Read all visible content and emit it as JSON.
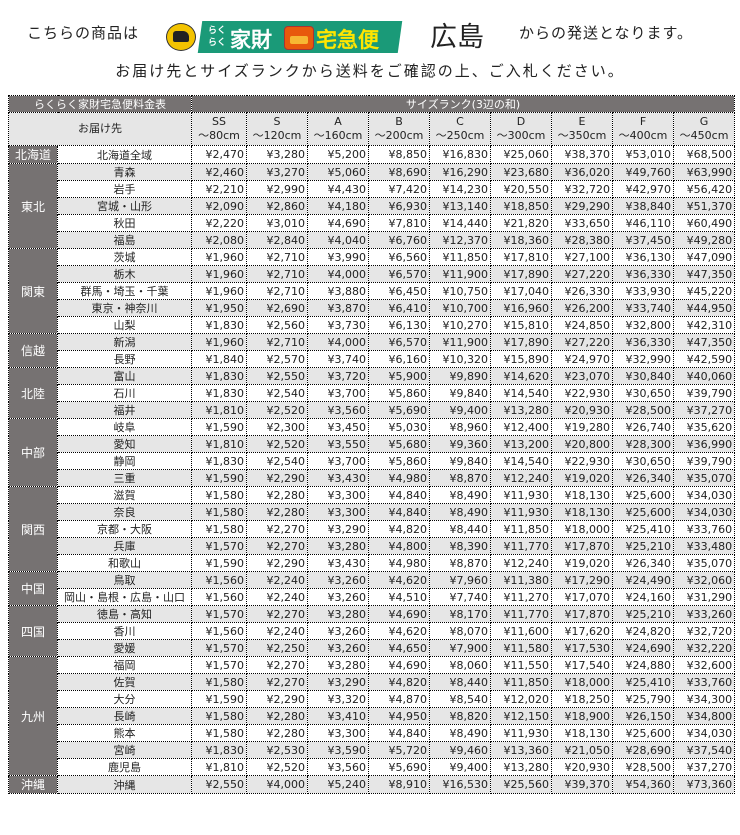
{
  "header": {
    "prefix": "こちらの商品は",
    "logo_text_small": "らくらく",
    "logo_text_a": "家財",
    "logo_text_b": "宅急便",
    "city": "広島",
    "suffix": "からの発送となります。",
    "instruction": "お届け先とサイズランクから送料をご確認の上、ご入札ください。"
  },
  "colors": {
    "header_bg": "#767272",
    "shaded_row": "#e6e6e6",
    "logo_green": "#1a9a78",
    "logo_yellow": "#ffe500"
  },
  "table": {
    "title": "らくらく家財宅急便料金表",
    "size_rank_label": "サイズランク(3辺の和)",
    "destination_label": "お届け先",
    "columns": [
      {
        "rank": "SS",
        "size": "～80cm"
      },
      {
        "rank": "S",
        "size": "～120cm"
      },
      {
        "rank": "A",
        "size": "～160cm"
      },
      {
        "rank": "B",
        "size": "～200cm"
      },
      {
        "rank": "C",
        "size": "～250cm"
      },
      {
        "rank": "D",
        "size": "～300cm"
      },
      {
        "rank": "E",
        "size": "～350cm"
      },
      {
        "rank": "F",
        "size": "～400cm"
      },
      {
        "rank": "G",
        "size": "～450cm"
      }
    ],
    "regions": [
      {
        "name": "北海道",
        "rows": [
          {
            "dest": "北海道全域",
            "shaded": false,
            "prices": [
              "¥2,470",
              "¥3,280",
              "¥5,200",
              "¥8,850",
              "¥16,830",
              "¥25,060",
              "¥38,370",
              "¥53,010",
              "¥68,500"
            ]
          }
        ]
      },
      {
        "name": "東北",
        "rows": [
          {
            "dest": "青森",
            "shaded": true,
            "prices": [
              "¥2,460",
              "¥3,270",
              "¥5,060",
              "¥8,690",
              "¥16,290",
              "¥23,680",
              "¥36,020",
              "¥49,760",
              "¥63,990"
            ]
          },
          {
            "dest": "岩手",
            "shaded": false,
            "prices": [
              "¥2,210",
              "¥2,990",
              "¥4,430",
              "¥7,420",
              "¥14,230",
              "¥20,550",
              "¥32,720",
              "¥42,970",
              "¥56,420"
            ]
          },
          {
            "dest": "宮城・山形",
            "shaded": true,
            "prices": [
              "¥2,090",
              "¥2,860",
              "¥4,180",
              "¥6,930",
              "¥13,140",
              "¥18,850",
              "¥29,290",
              "¥38,840",
              "¥51,370"
            ]
          },
          {
            "dest": "秋田",
            "shaded": false,
            "prices": [
              "¥2,220",
              "¥3,010",
              "¥4,690",
              "¥7,810",
              "¥14,440",
              "¥21,820",
              "¥33,650",
              "¥46,110",
              "¥60,490"
            ]
          },
          {
            "dest": "福島",
            "shaded": true,
            "prices": [
              "¥2,080",
              "¥2,840",
              "¥4,040",
              "¥6,760",
              "¥12,370",
              "¥18,360",
              "¥28,380",
              "¥37,450",
              "¥49,280"
            ]
          }
        ]
      },
      {
        "name": "関東",
        "rows": [
          {
            "dest": "茨城",
            "shaded": false,
            "prices": [
              "¥1,960",
              "¥2,710",
              "¥3,990",
              "¥6,560",
              "¥11,850",
              "¥17,810",
              "¥27,100",
              "¥36,130",
              "¥47,090"
            ]
          },
          {
            "dest": "栃木",
            "shaded": true,
            "prices": [
              "¥1,960",
              "¥2,710",
              "¥4,000",
              "¥6,570",
              "¥11,900",
              "¥17,890",
              "¥27,220",
              "¥36,330",
              "¥47,350"
            ]
          },
          {
            "dest": "群馬・埼玉・千葉",
            "shaded": false,
            "prices": [
              "¥1,960",
              "¥2,710",
              "¥3,880",
              "¥6,450",
              "¥10,750",
              "¥17,040",
              "¥26,330",
              "¥33,930",
              "¥45,220"
            ]
          },
          {
            "dest": "東京・神奈川",
            "shaded": true,
            "prices": [
              "¥1,950",
              "¥2,690",
              "¥3,870",
              "¥6,410",
              "¥10,700",
              "¥16,960",
              "¥26,200",
              "¥33,740",
              "¥44,950"
            ]
          },
          {
            "dest": "山梨",
            "shaded": false,
            "prices": [
              "¥1,830",
              "¥2,560",
              "¥3,730",
              "¥6,130",
              "¥10,270",
              "¥15,810",
              "¥24,850",
              "¥32,800",
              "¥42,310"
            ]
          }
        ]
      },
      {
        "name": "信越",
        "rows": [
          {
            "dest": "新潟",
            "shaded": true,
            "prices": [
              "¥1,960",
              "¥2,710",
              "¥4,000",
              "¥6,570",
              "¥11,900",
              "¥17,890",
              "¥27,220",
              "¥36,330",
              "¥47,350"
            ]
          },
          {
            "dest": "長野",
            "shaded": false,
            "prices": [
              "¥1,840",
              "¥2,570",
              "¥3,740",
              "¥6,160",
              "¥10,320",
              "¥15,890",
              "¥24,970",
              "¥32,990",
              "¥42,590"
            ]
          }
        ]
      },
      {
        "name": "北陸",
        "rows": [
          {
            "dest": "富山",
            "shaded": true,
            "prices": [
              "¥1,830",
              "¥2,550",
              "¥3,720",
              "¥5,900",
              "¥9,890",
              "¥14,620",
              "¥23,070",
              "¥30,840",
              "¥40,060"
            ]
          },
          {
            "dest": "石川",
            "shaded": false,
            "prices": [
              "¥1,830",
              "¥2,540",
              "¥3,700",
              "¥5,860",
              "¥9,840",
              "¥14,540",
              "¥22,930",
              "¥30,650",
              "¥39,790"
            ]
          },
          {
            "dest": "福井",
            "shaded": true,
            "prices": [
              "¥1,810",
              "¥2,520",
              "¥3,560",
              "¥5,690",
              "¥9,400",
              "¥13,280",
              "¥20,930",
              "¥28,500",
              "¥37,270"
            ]
          }
        ]
      },
      {
        "name": "中部",
        "rows": [
          {
            "dest": "岐阜",
            "shaded": false,
            "prices": [
              "¥1,590",
              "¥2,300",
              "¥3,450",
              "¥5,030",
              "¥8,960",
              "¥12,400",
              "¥19,280",
              "¥26,740",
              "¥35,620"
            ]
          },
          {
            "dest": "愛知",
            "shaded": true,
            "prices": [
              "¥1,810",
              "¥2,520",
              "¥3,550",
              "¥5,680",
              "¥9,360",
              "¥13,200",
              "¥20,800",
              "¥28,300",
              "¥36,990"
            ]
          },
          {
            "dest": "静岡",
            "shaded": false,
            "prices": [
              "¥1,830",
              "¥2,540",
              "¥3,700",
              "¥5,860",
              "¥9,840",
              "¥14,540",
              "¥22,930",
              "¥30,650",
              "¥39,790"
            ]
          },
          {
            "dest": "三重",
            "shaded": true,
            "prices": [
              "¥1,590",
              "¥2,290",
              "¥3,430",
              "¥4,980",
              "¥8,870",
              "¥12,240",
              "¥19,020",
              "¥26,340",
              "¥35,070"
            ]
          }
        ]
      },
      {
        "name": "関西",
        "rows": [
          {
            "dest": "滋賀",
            "shaded": false,
            "prices": [
              "¥1,580",
              "¥2,280",
              "¥3,300",
              "¥4,840",
              "¥8,490",
              "¥11,930",
              "¥18,130",
              "¥25,600",
              "¥34,030"
            ]
          },
          {
            "dest": "奈良",
            "shaded": true,
            "prices": [
              "¥1,580",
              "¥2,280",
              "¥3,300",
              "¥4,840",
              "¥8,490",
              "¥11,930",
              "¥18,130",
              "¥25,600",
              "¥34,030"
            ]
          },
          {
            "dest": "京都・大阪",
            "shaded": false,
            "prices": [
              "¥1,580",
              "¥2,270",
              "¥3,290",
              "¥4,820",
              "¥8,440",
              "¥11,850",
              "¥18,000",
              "¥25,410",
              "¥33,760"
            ]
          },
          {
            "dest": "兵庫",
            "shaded": true,
            "prices": [
              "¥1,570",
              "¥2,270",
              "¥3,280",
              "¥4,800",
              "¥8,390",
              "¥11,770",
              "¥17,870",
              "¥25,210",
              "¥33,480"
            ]
          },
          {
            "dest": "和歌山",
            "shaded": false,
            "prices": [
              "¥1,590",
              "¥2,290",
              "¥3,430",
              "¥4,980",
              "¥8,870",
              "¥12,240",
              "¥19,020",
              "¥26,340",
              "¥35,070"
            ]
          }
        ]
      },
      {
        "name": "中国",
        "rows": [
          {
            "dest": "鳥取",
            "shaded": true,
            "prices": [
              "¥1,560",
              "¥2,240",
              "¥3,260",
              "¥4,620",
              "¥7,960",
              "¥11,380",
              "¥17,290",
              "¥24,490",
              "¥32,060"
            ]
          },
          {
            "dest": "岡山・島根・広島・山口",
            "shaded": false,
            "prices": [
              "¥1,560",
              "¥2,240",
              "¥3,260",
              "¥4,510",
              "¥7,740",
              "¥11,270",
              "¥17,070",
              "¥24,160",
              "¥31,290"
            ]
          }
        ]
      },
      {
        "name": "四国",
        "rows": [
          {
            "dest": "徳島・高知",
            "shaded": true,
            "prices": [
              "¥1,570",
              "¥2,270",
              "¥3,280",
              "¥4,690",
              "¥8,170",
              "¥11,770",
              "¥17,870",
              "¥25,210",
              "¥33,260"
            ]
          },
          {
            "dest": "香川",
            "shaded": false,
            "prices": [
              "¥1,560",
              "¥2,240",
              "¥3,260",
              "¥4,620",
              "¥8,070",
              "¥11,600",
              "¥17,620",
              "¥24,820",
              "¥32,720"
            ]
          },
          {
            "dest": "愛媛",
            "shaded": true,
            "prices": [
              "¥1,570",
              "¥2,250",
              "¥3,260",
              "¥4,650",
              "¥7,900",
              "¥11,580",
              "¥17,530",
              "¥24,690",
              "¥32,220"
            ]
          }
        ]
      },
      {
        "name": "九州",
        "rows": [
          {
            "dest": "福岡",
            "shaded": false,
            "prices": [
              "¥1,570",
              "¥2,270",
              "¥3,280",
              "¥4,690",
              "¥8,060",
              "¥11,550",
              "¥17,540",
              "¥24,880",
              "¥32,600"
            ]
          },
          {
            "dest": "佐賀",
            "shaded": true,
            "prices": [
              "¥1,580",
              "¥2,270",
              "¥3,290",
              "¥4,820",
              "¥8,440",
              "¥11,850",
              "¥18,000",
              "¥25,410",
              "¥33,760"
            ]
          },
          {
            "dest": "大分",
            "shaded": false,
            "prices": [
              "¥1,590",
              "¥2,290",
              "¥3,320",
              "¥4,870",
              "¥8,540",
              "¥12,020",
              "¥18,250",
              "¥25,790",
              "¥34,300"
            ]
          },
          {
            "dest": "長崎",
            "shaded": true,
            "prices": [
              "¥1,580",
              "¥2,280",
              "¥3,410",
              "¥4,950",
              "¥8,820",
              "¥12,150",
              "¥18,900",
              "¥26,150",
              "¥34,800"
            ]
          },
          {
            "dest": "熊本",
            "shaded": false,
            "prices": [
              "¥1,580",
              "¥2,280",
              "¥3,300",
              "¥4,840",
              "¥8,490",
              "¥11,930",
              "¥18,130",
              "¥25,600",
              "¥34,030"
            ]
          },
          {
            "dest": "宮崎",
            "shaded": true,
            "prices": [
              "¥1,830",
              "¥2,530",
              "¥3,590",
              "¥5,720",
              "¥9,460",
              "¥13,360",
              "¥21,050",
              "¥28,690",
              "¥37,540"
            ]
          },
          {
            "dest": "鹿児島",
            "shaded": false,
            "prices": [
              "¥1,810",
              "¥2,520",
              "¥3,560",
              "¥5,690",
              "¥9,400",
              "¥13,280",
              "¥20,930",
              "¥28,500",
              "¥37,270"
            ]
          }
        ]
      },
      {
        "name": "沖縄",
        "rows": [
          {
            "dest": "沖縄",
            "shaded": true,
            "prices": [
              "¥2,550",
              "¥4,000",
              "¥5,240",
              "¥8,910",
              "¥16,530",
              "¥25,560",
              "¥39,370",
              "¥54,360",
              "¥73,360"
            ]
          }
        ]
      }
    ]
  }
}
